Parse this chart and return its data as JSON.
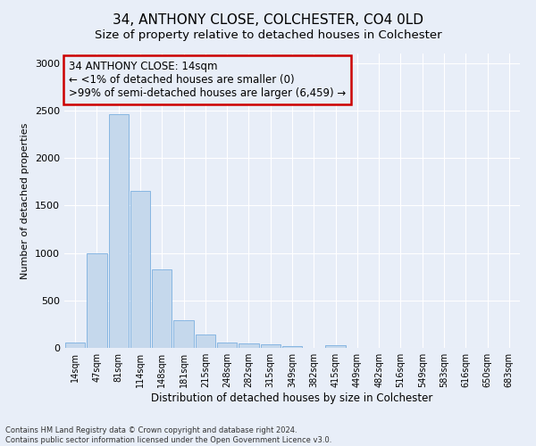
{
  "title": "34, ANTHONY CLOSE, COLCHESTER, CO4 0LD",
  "subtitle": "Size of property relative to detached houses in Colchester",
  "xlabel": "Distribution of detached houses by size in Colchester",
  "ylabel": "Number of detached properties",
  "bar_labels": [
    "14sqm",
    "47sqm",
    "81sqm",
    "114sqm",
    "148sqm",
    "181sqm",
    "215sqm",
    "248sqm",
    "282sqm",
    "315sqm",
    "349sqm",
    "382sqm",
    "415sqm",
    "449sqm",
    "482sqm",
    "516sqm",
    "549sqm",
    "583sqm",
    "616sqm",
    "650sqm",
    "683sqm"
  ],
  "bar_values": [
    60,
    1000,
    2460,
    1650,
    830,
    295,
    140,
    55,
    45,
    35,
    15,
    0,
    25,
    0,
    0,
    0,
    0,
    0,
    0,
    0,
    0
  ],
  "bar_color": "#c5d8ec",
  "bar_edge_color": "#7aafe0",
  "annotation_text": "34 ANTHONY CLOSE: 14sqm\n← <1% of detached houses are smaller (0)\n>99% of semi-detached houses are larger (6,459) →",
  "annotation_box_color": "#cc0000",
  "ylim": [
    0,
    3100
  ],
  "yticks": [
    0,
    500,
    1000,
    1500,
    2000,
    2500,
    3000
  ],
  "footer_line1": "Contains HM Land Registry data © Crown copyright and database right 2024.",
  "footer_line2": "Contains public sector information licensed under the Open Government Licence v3.0.",
  "bg_color": "#e8eef8",
  "grid_color": "#ffffff",
  "title_fontsize": 11,
  "subtitle_fontsize": 9.5,
  "annotation_fontsize": 8.5,
  "ylabel_fontsize": 8,
  "xlabel_fontsize": 8.5,
  "ytick_fontsize": 8,
  "xtick_fontsize": 7
}
